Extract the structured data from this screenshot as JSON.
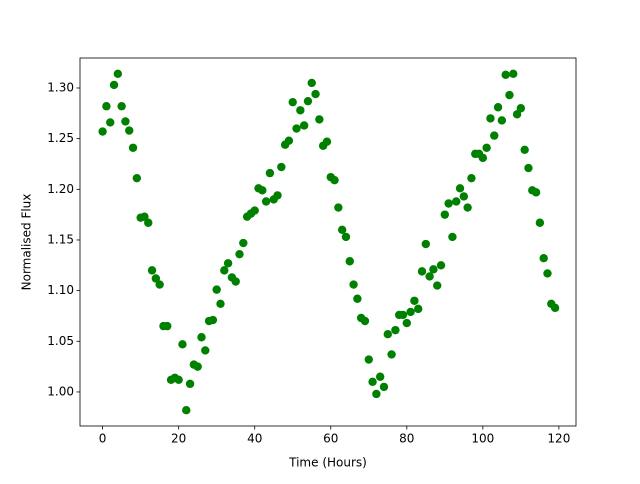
{
  "chart_data": {
    "type": "scatter",
    "xlabel": "Time (Hours)",
    "ylabel": "Normalised Flux",
    "color": "#008000",
    "x": [
      0,
      1,
      2,
      3,
      4,
      5,
      6,
      7,
      8,
      9,
      10,
      11,
      12,
      13,
      14,
      15,
      16,
      17,
      18,
      19,
      20,
      21,
      22,
      23,
      24,
      25,
      26,
      27,
      28,
      29,
      30,
      31,
      32,
      33,
      34,
      35,
      36,
      37,
      38,
      39,
      40,
      41,
      42,
      43,
      44,
      45,
      46,
      47,
      48,
      49,
      50,
      51,
      52,
      53,
      54,
      55,
      56,
      57,
      58,
      59,
      60,
      61,
      62,
      63,
      64,
      65,
      66,
      67,
      68,
      69,
      70,
      71,
      72,
      73,
      74,
      75,
      76,
      77,
      78,
      79,
      80,
      81,
      82,
      83,
      84,
      85,
      86,
      87,
      88,
      89,
      90,
      91,
      92,
      93,
      94,
      95,
      96,
      97,
      98,
      99,
      100,
      101,
      102,
      103,
      104,
      105,
      106,
      107,
      108,
      109,
      110,
      111,
      112,
      113,
      114,
      115,
      116,
      117,
      118,
      119
    ],
    "values": [
      1.257,
      1.282,
      1.266,
      1.303,
      1.314,
      1.282,
      1.267,
      1.258,
      1.241,
      1.211,
      1.172,
      1.173,
      1.167,
      1.12,
      1.112,
      1.106,
      1.065,
      1.065,
      1.012,
      1.014,
      1.012,
      1.047,
      0.982,
      1.008,
      1.027,
      1.025,
      1.054,
      1.041,
      1.07,
      1.071,
      1.101,
      1.087,
      1.12,
      1.127,
      1.113,
      1.109,
      1.136,
      1.147,
      1.173,
      1.176,
      1.179,
      1.201,
      1.199,
      1.188,
      1.216,
      1.19,
      1.194,
      1.222,
      1.244,
      1.248,
      1.286,
      1.26,
      1.278,
      1.263,
      1.287,
      1.305,
      1.294,
      1.269,
      1.243,
      1.247,
      1.212,
      1.209,
      1.182,
      1.16,
      1.153,
      1.129,
      1.106,
      1.092,
      1.073,
      1.07,
      1.032,
      1.01,
      0.998,
      1.015,
      1.005,
      1.057,
      1.037,
      1.061,
      1.076,
      1.076,
      1.068,
      1.079,
      1.09,
      1.082,
      1.119,
      1.146,
      1.114,
      1.121,
      1.105,
      1.125,
      1.175,
      1.186,
      1.153,
      1.188,
      1.201,
      1.193,
      1.182,
      1.211,
      1.235,
      1.235,
      1.231,
      1.241,
      1.27,
      1.253,
      1.281,
      1.268,
      1.313,
      1.293,
      1.314,
      1.274,
      1.28,
      1.239,
      1.221,
      1.199,
      1.197,
      1.167,
      1.132,
      1.117,
      1.087,
      1.083
    ],
    "xlim": [
      -5.95,
      124.5
    ],
    "ylim": [
      0.9664,
      1.3296
    ],
    "xticks": [
      0,
      20,
      40,
      60,
      80,
      100,
      120
    ],
    "yticks": [
      {
        "value": 1.0,
        "label": "1.00"
      },
      1.05,
      {
        "value": 1.1,
        "label": "1.10"
      },
      1.15,
      {
        "value": 1.2,
        "label": "1.20"
      },
      1.25,
      {
        "value": 1.3,
        "label": "1.30"
      }
    ]
  }
}
